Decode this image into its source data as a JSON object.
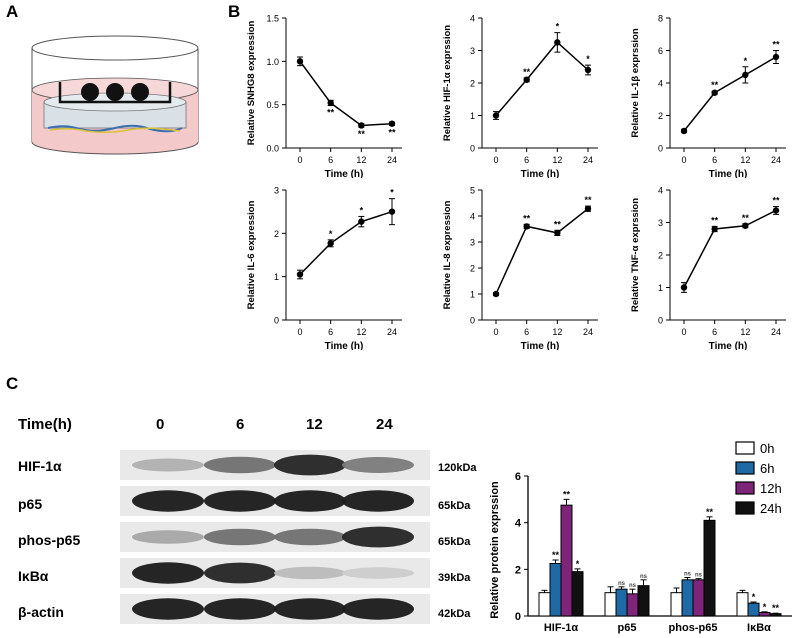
{
  "panels": {
    "A": "A",
    "B": "B",
    "C": "C"
  },
  "charts_b": [
    {
      "ylabel": "Relative SNHG8 expression",
      "ylim": [
        0,
        1.5
      ],
      "yticks": [
        "0.0",
        "0.5",
        "1.0",
        "1.5"
      ],
      "values": [
        1.0,
        0.52,
        0.26,
        0.28
      ],
      "errors": [
        0.05,
        0.03,
        0.02,
        0.02
      ],
      "stars": [
        "",
        "**",
        "**",
        "**"
      ]
    },
    {
      "ylabel": "Relative HIF-1α exprssion",
      "ylim": [
        0,
        4
      ],
      "yticks": [
        "0",
        "1",
        "2",
        "3",
        "4"
      ],
      "values": [
        1.0,
        2.1,
        3.25,
        2.4
      ],
      "errors": [
        0.12,
        0.06,
        0.3,
        0.15
      ],
      "stars": [
        "",
        "**",
        "*",
        "*"
      ]
    },
    {
      "ylabel": "Relative IL-1β exprssion",
      "ylim": [
        0,
        8
      ],
      "yticks": [
        "0",
        "2",
        "4",
        "6",
        "8"
      ],
      "values": [
        1.05,
        3.4,
        4.5,
        5.6
      ],
      "errors": [
        0.08,
        0.1,
        0.5,
        0.4
      ],
      "stars": [
        "",
        "**",
        "*",
        "**"
      ]
    },
    {
      "ylabel": "Relative IL-6 expression",
      "ylim": [
        0,
        3
      ],
      "yticks": [
        "0",
        "1",
        "2",
        "3"
      ],
      "values": [
        1.05,
        1.77,
        2.27,
        2.5
      ],
      "errors": [
        0.1,
        0.08,
        0.12,
        0.3
      ],
      "stars": [
        "",
        "*",
        "*",
        "*"
      ]
    },
    {
      "ylabel": "Relative IL-8 expression",
      "ylim": [
        0,
        5
      ],
      "yticks": [
        "0",
        "1",
        "2",
        "3",
        "4",
        "5"
      ],
      "values": [
        1.0,
        3.6,
        3.35,
        4.28
      ],
      "errors": [
        0.06,
        0.08,
        0.1,
        0.1
      ],
      "stars": [
        "",
        "**",
        "**",
        "**"
      ]
    },
    {
      "ylabel": "Relative TNF-α exprssion",
      "ylim": [
        0,
        4
      ],
      "yticks": [
        "0",
        "1",
        "2",
        "3",
        "4"
      ],
      "values": [
        1.0,
        2.8,
        2.9,
        3.37
      ],
      "errors": [
        0.15,
        0.08,
        0.06,
        0.12
      ],
      "stars": [
        "",
        "**",
        "**",
        "**"
      ]
    }
  ],
  "chart_b_common": {
    "type": "line",
    "x": [
      "0",
      "6",
      "12",
      "24"
    ],
    "xlabel": "Time (h)"
  },
  "western_blot": {
    "time_label": "Time(h)",
    "times": [
      "0",
      "6",
      "12",
      "24"
    ],
    "rows": [
      {
        "label": "HIF-1α",
        "kda": "120kDa",
        "intensity": [
          0.25,
          0.55,
          0.9,
          0.5
        ]
      },
      {
        "label": "p65",
        "kda": "65kDa",
        "intensity": [
          0.95,
          0.95,
          0.95,
          0.95
        ]
      },
      {
        "label": "phos-p65",
        "kda": "65kDa",
        "intensity": [
          0.3,
          0.55,
          0.55,
          0.9
        ]
      },
      {
        "label": "IκBα",
        "kda": "39kDa",
        "intensity": [
          0.95,
          0.9,
          0.2,
          0.12
        ]
      },
      {
        "label": "β-actin",
        "kda": "42kDa",
        "intensity": [
          0.95,
          0.95,
          0.95,
          0.95
        ]
      }
    ]
  },
  "chart_data": {
    "type": "bar",
    "ylabel": "Relative protein exprssion",
    "ylim": [
      0,
      6
    ],
    "yticks": [
      "0",
      "2",
      "4",
      "6"
    ],
    "categories": [
      "HIF-1α",
      "p65",
      "phos-p65",
      "IκBα"
    ],
    "series": [
      {
        "name": "0h",
        "color": "#ffffff",
        "values": [
          1.0,
          1.0,
          1.0,
          1.0
        ],
        "errors": [
          0.1,
          0.25,
          0.2,
          0.1
        ],
        "stars": [
          "",
          "",
          "",
          ""
        ]
      },
      {
        "name": "6h",
        "color": "#1f6aa5",
        "values": [
          2.25,
          1.15,
          1.55,
          0.55
        ],
        "errors": [
          0.15,
          0.1,
          0.1,
          0.05
        ],
        "stars": [
          "**",
          "ns",
          "ns",
          "*"
        ]
      },
      {
        "name": "12h",
        "color": "#7e2479",
        "values": [
          4.75,
          0.95,
          1.55,
          0.15
        ],
        "errors": [
          0.25,
          0.2,
          0.05,
          0.03
        ],
        "stars": [
          "**",
          "ns",
          "ns",
          "*"
        ]
      },
      {
        "name": "24h",
        "color": "#111111",
        "values": [
          1.9,
          1.3,
          4.1,
          0.1
        ],
        "errors": [
          0.12,
          0.25,
          0.15,
          0.02
        ],
        "stars": [
          "*",
          "ns",
          "**",
          "**"
        ]
      }
    ],
    "legend_position": "top-right"
  }
}
